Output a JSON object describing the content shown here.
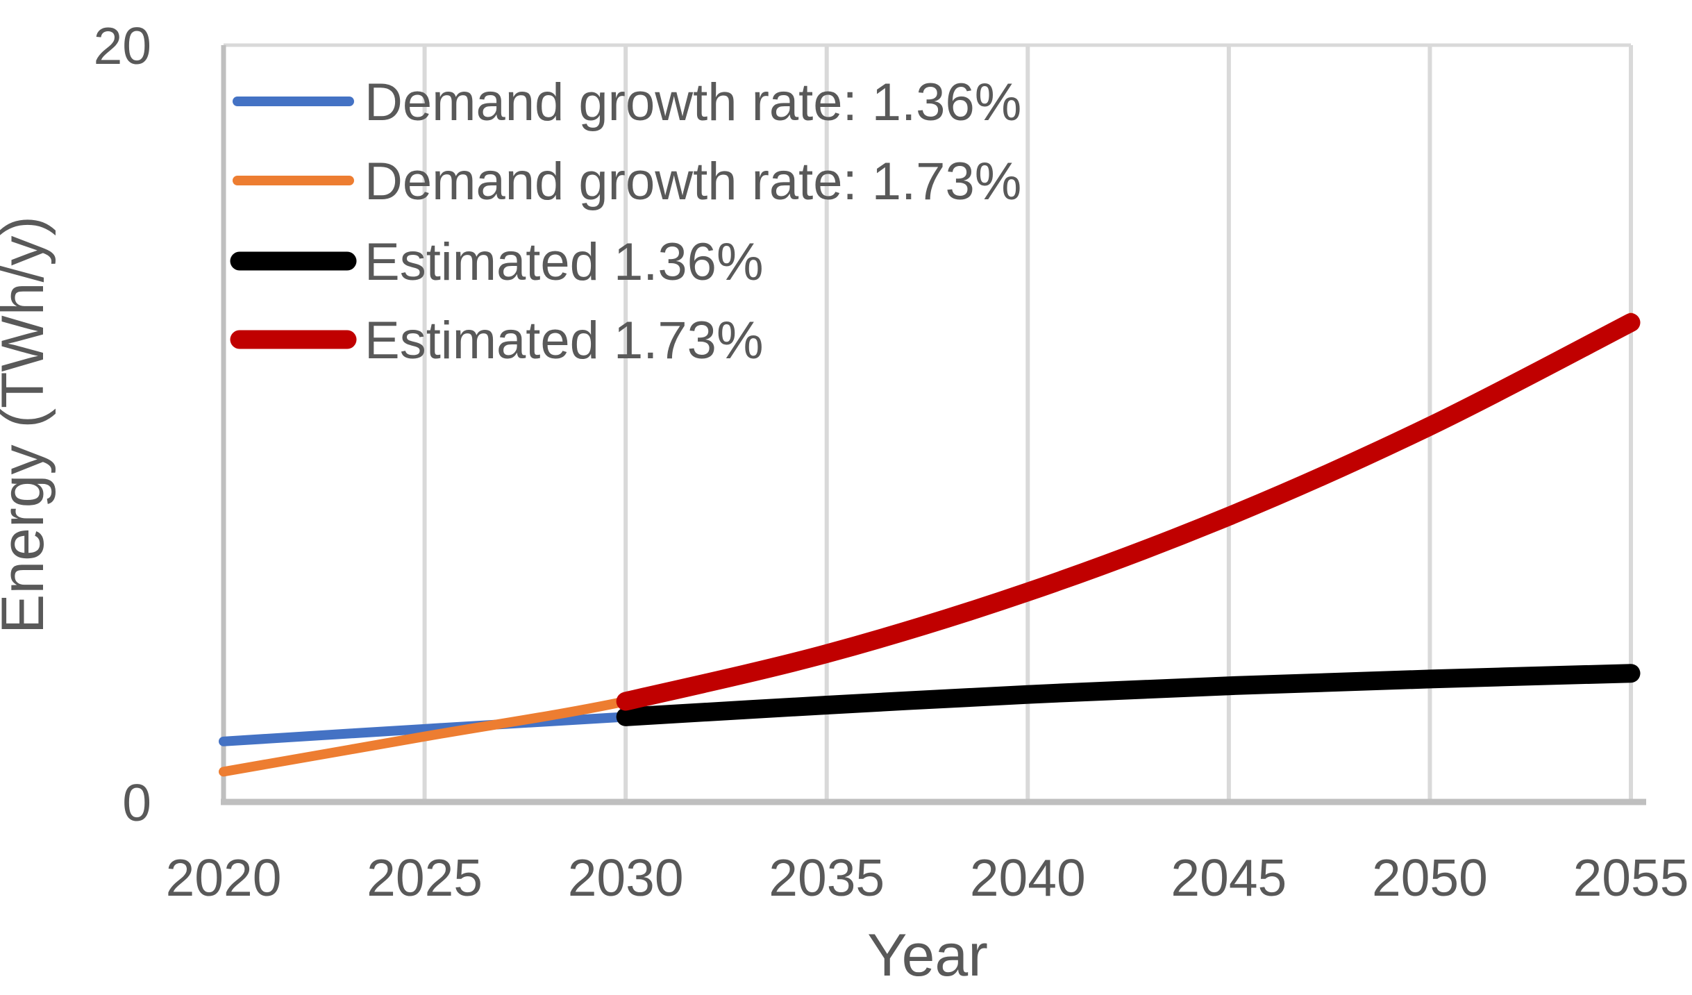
{
  "chart_data": {
    "type": "line",
    "title": "",
    "xlabel": "Year",
    "ylabel": "Energy (TWh/y)",
    "xlim": [
      2020,
      2055
    ],
    "ylim": [
      0,
      20
    ],
    "x_ticks": [
      2020,
      2025,
      2030,
      2035,
      2040,
      2045,
      2050,
      2055
    ],
    "x_tick_labels": [
      "2020",
      "2025",
      "2030",
      "2035",
      "2040",
      "2045",
      "2050",
      "2055"
    ],
    "y_ticks": [
      0,
      20
    ],
    "y_tick_labels": [
      "0",
      "20"
    ],
    "grid": "vertical-gridlines-only",
    "legend_position": "top-left-inside",
    "series": [
      {
        "name": "Demand growth rate: 1.36%",
        "color": "#4472C4",
        "line_width": 14,
        "x": [
          2020,
          2025,
          2030
        ],
        "values": [
          1.6,
          1.93,
          2.25
        ]
      },
      {
        "name": "Demand growth rate: 1.73%",
        "color": "#ED7D31",
        "line_width": 14,
        "x": [
          2020,
          2025,
          2030,
          2035,
          2040,
          2045,
          2050,
          2055
        ],
        "values": [
          0.8,
          1.73,
          2.66,
          3.95,
          5.6,
          7.6,
          9.95,
          12.8
        ]
      },
      {
        "name": "Estimated 1.36%",
        "color": "#000000",
        "line_width": 27,
        "x": [
          2030,
          2035,
          2040,
          2045,
          2050,
          2055
        ],
        "values": [
          2.25,
          2.56,
          2.84,
          3.07,
          3.25,
          3.4
        ]
      },
      {
        "name": "Estimated 1.73%",
        "color": "#C00000",
        "line_width": 27,
        "x": [
          2030,
          2035,
          2040,
          2045,
          2050,
          2055
        ],
        "values": [
          2.66,
          3.92,
          5.55,
          7.55,
          9.93,
          12.67
        ]
      }
    ],
    "colors": {
      "gridline": "#D9D9D9",
      "axis_line": "#BFBFBF",
      "text": "#595959",
      "background": "#FFFFFF"
    }
  }
}
